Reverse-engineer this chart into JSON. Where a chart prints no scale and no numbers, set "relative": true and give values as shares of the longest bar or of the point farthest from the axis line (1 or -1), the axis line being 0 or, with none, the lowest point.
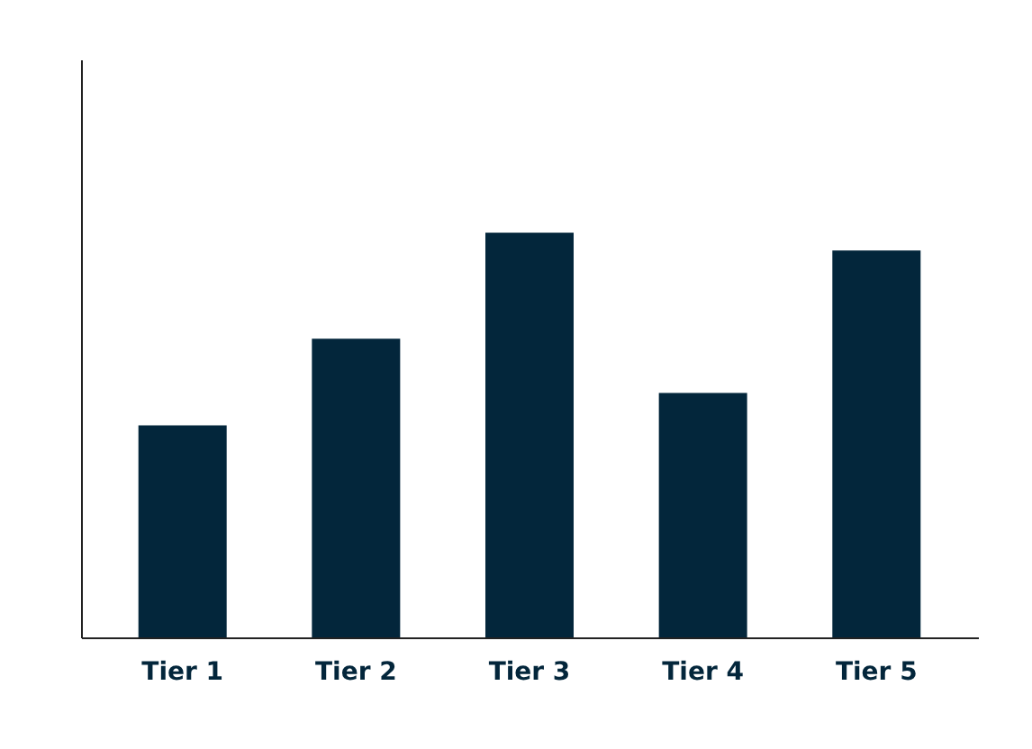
{
  "chart_data": {
    "type": "bar",
    "relative": true,
    "categories": [
      "Tier 1",
      "Tier 2",
      "Tier 3",
      "Tier 4",
      "Tier 5"
    ],
    "values": [
      0.524,
      0.738,
      1,
      0.604,
      0.956
    ],
    "color": "#03263b",
    "grid": false
  }
}
